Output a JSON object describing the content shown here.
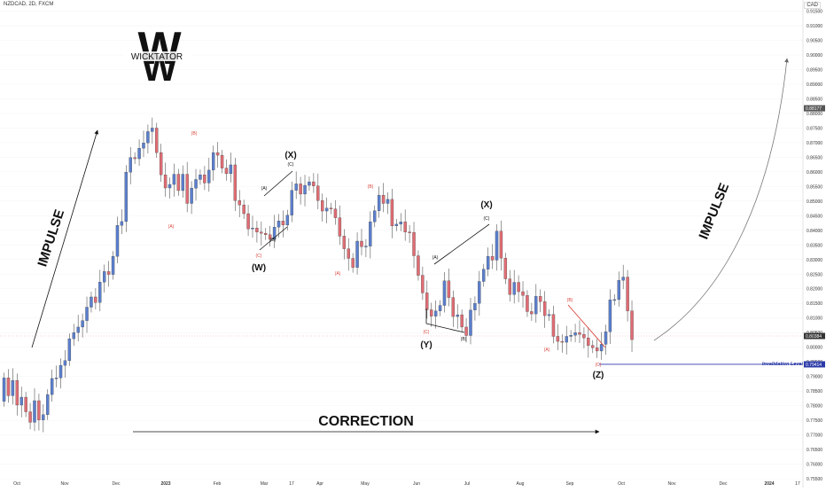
{
  "header": {
    "symbol": "NZDCAD, 2D, FXCM",
    "currency": "CAD"
  },
  "logo": {
    "text": "WICKTATOR",
    "letter": "W"
  },
  "colors": {
    "up": "#5b7fce",
    "down": "#e06c74",
    "invalidation": "#2b3aa8",
    "label_red": "#d9463c",
    "wave_line": "#111111"
  },
  "chart_data": {
    "type": "candlestick",
    "ylim": [
      0.755,
      0.917
    ],
    "y_ticks": [
      0.915,
      0.91,
      0.905,
      0.9,
      0.895,
      0.89,
      0.885,
      0.88,
      0.875,
      0.87,
      0.865,
      0.86,
      0.855,
      0.85,
      0.845,
      0.84,
      0.835,
      0.83,
      0.825,
      0.82,
      0.815,
      0.81,
      0.805,
      0.8,
      0.795,
      0.79,
      0.785,
      0.78,
      0.775,
      0.77,
      0.765,
      0.76,
      0.755
    ],
    "x_labels": [
      "Oct",
      "Nov",
      "Dec",
      "2023",
      "Feb",
      "Mar",
      "17",
      "Apr",
      "May",
      "Jun",
      "Jul",
      "Aug",
      "Sep",
      "Oct",
      "Nov",
      "Dec",
      "2024",
      "17"
    ],
    "price_markers": [
      {
        "value": 0.88177,
        "label": "0.88177"
      },
      {
        "value": 0.80384,
        "label": "0.80384"
      },
      {
        "value": 0.79414,
        "label": "0.79414"
      }
    ],
    "invalidation_level": {
      "value": 0.79414,
      "label": "Invalidation Level"
    },
    "closes": [
      0.7895,
      0.7834,
      0.7886,
      0.7802,
      0.7829,
      0.7779,
      0.7743,
      0.7817,
      0.7751,
      0.7769,
      0.7838,
      0.7893,
      0.7895,
      0.7938,
      0.7954,
      0.8029,
      0.805,
      0.8069,
      0.8091,
      0.8137,
      0.8172,
      0.8153,
      0.8223,
      0.8259,
      0.8249,
      0.8311,
      0.8417,
      0.843,
      0.8599,
      0.8649,
      0.8645,
      0.8681,
      0.8699,
      0.8738,
      0.875,
      0.8666,
      0.859,
      0.8545,
      0.8557,
      0.8592,
      0.8536,
      0.8592,
      0.8492,
      0.8544,
      0.8574,
      0.859,
      0.8562,
      0.8606,
      0.8666,
      0.8657,
      0.8613,
      0.8594,
      0.8624,
      0.8502,
      0.8487,
      0.8457,
      0.8405,
      0.8408,
      0.8394,
      0.839,
      0.8385,
      0.8369,
      0.8411,
      0.8432,
      0.8418,
      0.8452,
      0.8537,
      0.8559,
      0.8524,
      0.8554,
      0.8566,
      0.8552,
      0.8502,
      0.8466,
      0.8476,
      0.8473,
      0.8443,
      0.838,
      0.8337,
      0.8304,
      0.8273,
      0.8363,
      0.8344,
      0.8346,
      0.8429,
      0.8467,
      0.852,
      0.8492,
      0.8506,
      0.8415,
      0.8421,
      0.8429,
      0.8394,
      0.8393,
      0.8313,
      0.8246,
      0.8186,
      0.8128,
      0.8106,
      0.8124,
      0.8143,
      0.8227,
      0.817,
      0.8105,
      0.8111,
      0.8069,
      0.804,
      0.8127,
      0.815,
      0.8225,
      0.8267,
      0.8311,
      0.8298,
      0.8397,
      0.8305,
      0.8234,
      0.818,
      0.8222,
      0.819,
      0.8177,
      0.8122,
      0.8114,
      0.8174,
      0.8156,
      0.8108,
      0.8112,
      0.8037,
      0.802,
      0.8017,
      0.8037,
      0.8041,
      0.805,
      0.8044,
      0.8032,
      0.8006,
      0.7998,
      0.7987,
      0.801,
      0.8053,
      0.8162,
      0.8163,
      0.8229,
      0.824,
      0.8124,
      0.8026
    ]
  },
  "annotations": {
    "impulse_left": "IMPULSE",
    "impulse_right": "IMPULSE",
    "correction": "CORRECTION",
    "black_labels": [
      {
        "text": "(X)",
        "x": 328,
        "y": 178,
        "size": 10,
        "bold": true
      },
      {
        "text": "(C)",
        "x": 328,
        "y": 187,
        "size": 5,
        "bold": false
      },
      {
        "text": "(A)",
        "x": 298,
        "y": 214,
        "size": 5,
        "bold": false
      },
      {
        "text": "(B)",
        "x": 308,
        "y": 272,
        "size": 5,
        "bold": false
      },
      {
        "text": "(W)",
        "x": 292,
        "y": 305,
        "size": 10,
        "bold": true
      },
      {
        "text": "(X)",
        "x": 549,
        "y": 234,
        "size": 10,
        "bold": true
      },
      {
        "text": "(C)",
        "x": 549,
        "y": 248,
        "size": 5,
        "bold": false
      },
      {
        "text": "(A)",
        "x": 491,
        "y": 292,
        "size": 5,
        "bold": false
      },
      {
        "text": "(B)",
        "x": 523,
        "y": 384,
        "size": 5,
        "bold": false
      },
      {
        "text": "(Y)",
        "x": 481,
        "y": 392,
        "size": 10,
        "bold": true
      },
      {
        "text": "(Z)",
        "x": 675,
        "y": 426,
        "size": 10,
        "bold": true
      }
    ],
    "red_labels": [
      {
        "text": "(B)",
        "x": 219,
        "y": 152
      },
      {
        "text": "(A)",
        "x": 193,
        "y": 257
      },
      {
        "text": "(C)",
        "x": 292,
        "y": 290
      },
      {
        "text": "(B)",
        "x": 418,
        "y": 212
      },
      {
        "text": "(A)",
        "x": 381,
        "y": 310
      },
      {
        "text": "(C)",
        "x": 481,
        "y": 376
      },
      {
        "text": "(B)",
        "x": 643,
        "y": 340
      },
      {
        "text": "(A)",
        "x": 617,
        "y": 396
      },
      {
        "text": "(C)",
        "x": 675,
        "y": 413
      }
    ]
  }
}
